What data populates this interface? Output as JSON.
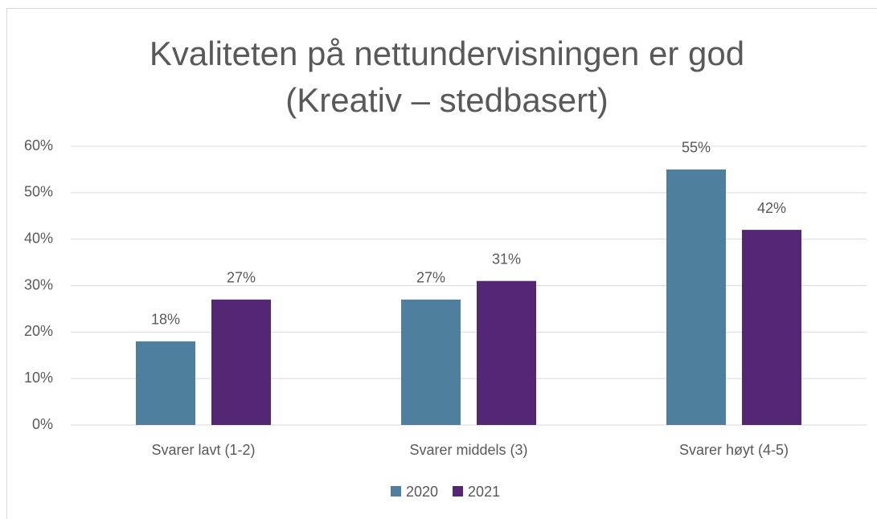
{
  "chart_data": {
    "type": "bar",
    "title": [
      "Kvaliteten på nettundervisningen er god",
      "(Kreativ – stedbasert)"
    ],
    "categories": [
      "Svarer lavt (1-2)",
      "Svarer middels (3)",
      "Svarer høyt (4-5)"
    ],
    "series": [
      {
        "name": "2020",
        "color": "#4e7f9e",
        "values": [
          18,
          27,
          55
        ],
        "value_labels": [
          "18%",
          "27%",
          "55%"
        ]
      },
      {
        "name": "2021",
        "color": "#532773",
        "values": [
          27,
          31,
          42
        ],
        "value_labels": [
          "27%",
          "31%",
          "42%"
        ]
      }
    ],
    "ylim": [
      0,
      60
    ],
    "yticks": [
      {
        "value": 0,
        "label": "0%"
      },
      {
        "value": 10,
        "label": "10%"
      },
      {
        "value": 20,
        "label": "20%"
      },
      {
        "value": 30,
        "label": "30%"
      },
      {
        "value": 40,
        "label": "40%"
      },
      {
        "value": 50,
        "label": "50%"
      },
      {
        "value": 60,
        "label": "60%"
      }
    ],
    "grid": true,
    "legend": "bottom"
  }
}
